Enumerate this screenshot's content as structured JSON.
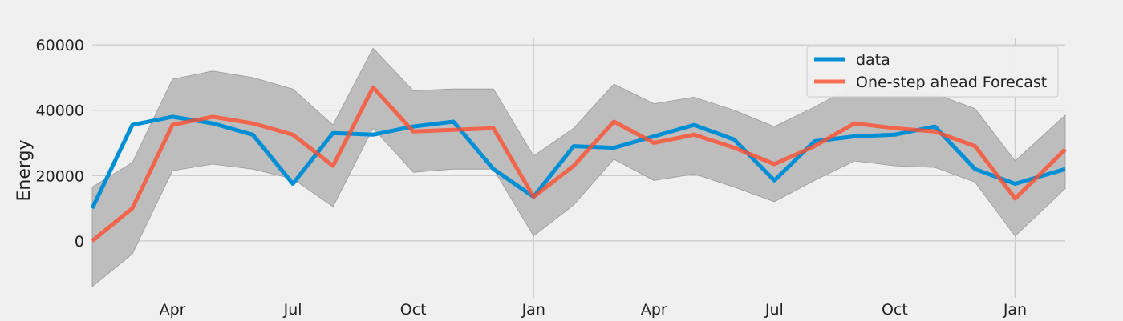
{
  "chart_data": {
    "type": "line",
    "title": "",
    "xlabel": "",
    "ylabel": "Energy",
    "ylim": [
      -14000,
      62000
    ],
    "grid": true,
    "legend_placement": "top-right",
    "x_ticks": [
      {
        "label": "Apr",
        "x": 2
      },
      {
        "label": "Jul",
        "x": 5
      },
      {
        "label": "Oct",
        "x": 8
      },
      {
        "label": "Jan",
        "x": 11
      },
      {
        "label": "Apr",
        "x": 14
      },
      {
        "label": "Jul",
        "x": 17
      },
      {
        "label": "Oct",
        "x": 20
      },
      {
        "label": "Jan",
        "x": 23
      }
    ],
    "y_ticks": [
      0,
      20000,
      40000,
      60000
    ],
    "x_range": [
      0,
      24.25
    ],
    "x": [
      0,
      1,
      2,
      3,
      4,
      5,
      6,
      7,
      8,
      9,
      10,
      11,
      12,
      13,
      14,
      15,
      16,
      17,
      18,
      19,
      20,
      21,
      22,
      23,
      24.25
    ],
    "confidence_interval": {
      "name": "",
      "color": "#bdbdbd",
      "upper": [
        16500,
        24000,
        49500,
        52000,
        50000,
        46500,
        35500,
        59000,
        46000,
        46500,
        46500,
        26000,
        34500,
        48000,
        42000,
        44000,
        40000,
        35000,
        41000,
        47500,
        46000,
        45000,
        40500,
        24500,
        38500
      ],
      "lower": [
        -14000,
        -4000,
        21500,
        23500,
        22000,
        19000,
        10500,
        34500,
        21000,
        22000,
        22000,
        1500,
        11000,
        25000,
        18500,
        20500,
        16500,
        12000,
        18500,
        24500,
        23000,
        22500,
        18000,
        1500,
        16000
      ]
    },
    "series": [
      {
        "name": "data",
        "color": "#008fd5",
        "values": [
          10000,
          35500,
          38000,
          36000,
          32500,
          17500,
          33000,
          32500,
          35000,
          36500,
          22000,
          13500,
          29000,
          28500,
          32000,
          35500,
          31000,
          18500,
          30500,
          32000,
          32500,
          35000,
          22000,
          17500,
          22000
        ]
      },
      {
        "name": "One-step ahead Forecast",
        "color": "#fc4f30",
        "values": [
          0,
          10000,
          35500,
          38000,
          36000,
          32500,
          23000,
          47000,
          33500,
          34000,
          34500,
          13500,
          23000,
          36500,
          30000,
          32500,
          28500,
          23500,
          29000,
          36000,
          34500,
          33500,
          29000,
          13000,
          28000
        ]
      }
    ]
  }
}
